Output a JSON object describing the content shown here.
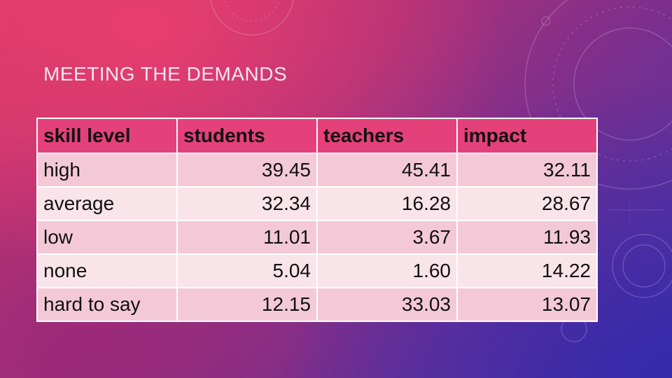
{
  "slide": {
    "title": "MEETING THE DEMANDS"
  },
  "table": {
    "headers": [
      "skill level",
      "students",
      "teachers",
      "impact"
    ],
    "rows": [
      [
        "high",
        "39.45",
        "45.41",
        "32.11"
      ],
      [
        "average",
        "32.34",
        "16.28",
        "28.67"
      ],
      [
        "low",
        "11.01",
        "3.67",
        "11.93"
      ],
      [
        "none",
        "5.04",
        "1.60",
        "14.22"
      ],
      [
        "hard to say",
        "12.15",
        "33.03",
        "13.07"
      ]
    ]
  },
  "colors": {
    "header_row": "#e4417a",
    "row_dark": "#f4c9d7",
    "row_light": "#f9e4ea",
    "background_top": "#d8386a",
    "background_bottom": "#4a35a8"
  }
}
